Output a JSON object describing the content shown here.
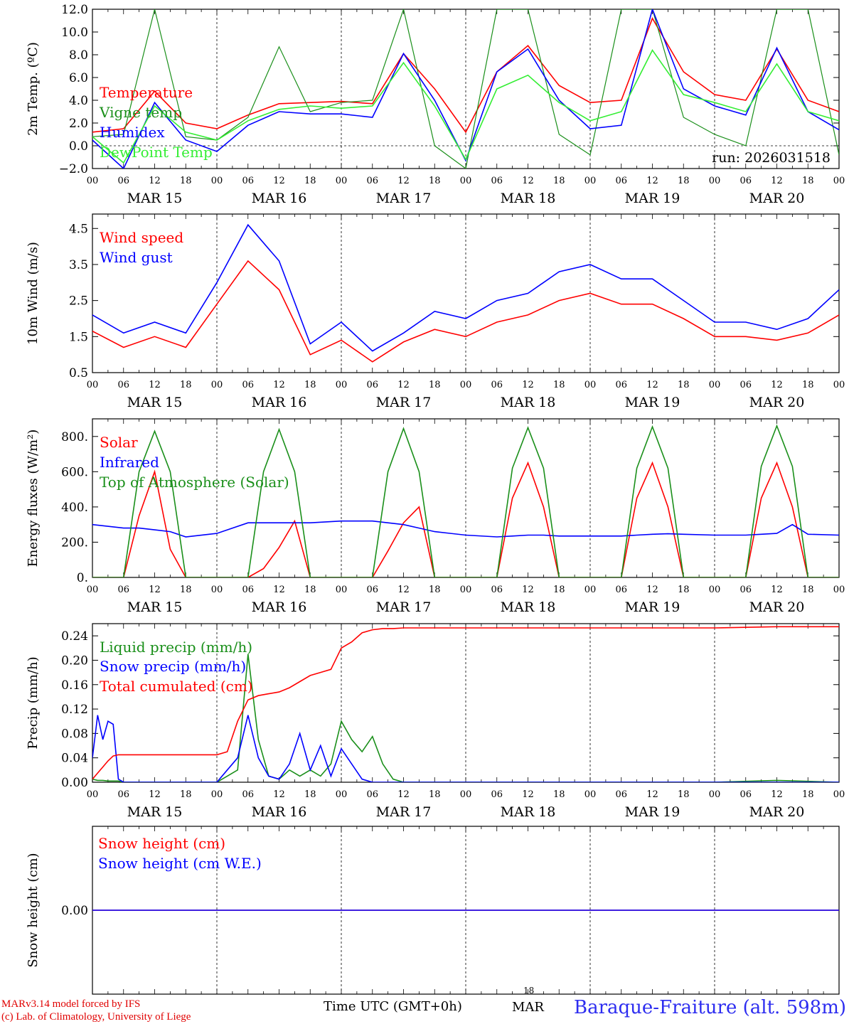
{
  "footer": {
    "model_line": "MARv3.14 model forced by IFS",
    "copyright_line": "(c) Lab. of Climatology, University of Liege",
    "time_label": "Time UTC (GMT+0h)",
    "center_day": "MAR",
    "center_hour": "18",
    "station": "Baraque-Fraiture (alt. 598m)"
  },
  "x_axis": {
    "hour_ticks": [
      "00",
      "06",
      "12",
      "18",
      "00",
      "06",
      "12",
      "18",
      "00",
      "06",
      "12",
      "18",
      "00",
      "06",
      "12",
      "18",
      "00",
      "06",
      "12",
      "18",
      "00",
      "06",
      "12",
      "18",
      "00"
    ],
    "day_labels": [
      "MAR 15",
      "MAR 16",
      "MAR 17",
      "MAR 18",
      "MAR 19",
      "MAR 20"
    ]
  },
  "colors": {
    "red": "#ff0000",
    "dark_green": "#1a8f1a",
    "blue": "#0000ff",
    "light_green": "#33ee33"
  },
  "chart_data": [
    {
      "type": "line",
      "ylabel": "2m Temp. (ºC)",
      "ylim": [
        -2,
        12
      ],
      "yticks": [
        "−2.0",
        "0.0",
        "2.0",
        "4.0",
        "6.0",
        "8.0",
        "10.0",
        "12.0"
      ],
      "annotation": "run: 2026031518",
      "x_hours": [
        0,
        6,
        12,
        18,
        24,
        30,
        36,
        42,
        48,
        54,
        60,
        66,
        72,
        78,
        84,
        90,
        96,
        102,
        108,
        114,
        120,
        126,
        132,
        138,
        144
      ],
      "series": [
        {
          "name": "Temperature",
          "color": "#ff0000",
          "values": [
            1.2,
            1.5,
            4.8,
            2.0,
            1.5,
            2.7,
            3.7,
            3.8,
            3.9,
            3.7,
            8.1,
            5.0,
            1.2,
            6.5,
            8.8,
            5.3,
            3.8,
            4.0,
            11.2,
            6.5,
            4.5,
            4.0,
            8.5,
            4.0,
            3.0
          ]
        },
        {
          "name": "Vigne temp",
          "color": "#1a8f1a",
          "values": [
            0.8,
            1.0,
            12.0,
            0.8,
            0.5,
            2.5,
            8.7,
            3.0,
            3.8,
            4.0,
            12.0,
            0.0,
            -2.0,
            12.0,
            12.0,
            1.0,
            -0.8,
            12.0,
            12.0,
            2.5,
            1.0,
            0.0,
            12.0,
            12.0,
            -0.8
          ]
        },
        {
          "name": "Humidex",
          "color": "#0000ff",
          "values": [
            0.5,
            -2.0,
            3.8,
            0.5,
            -0.5,
            1.8,
            3.0,
            2.8,
            2.8,
            2.5,
            8.1,
            4.0,
            -1.3,
            6.5,
            8.5,
            4.0,
            1.5,
            1.8,
            12.0,
            5.0,
            3.5,
            2.7,
            8.6,
            3.0,
            1.4
          ]
        },
        {
          "name": "DewPoint Temp",
          "color": "#33ee33",
          "values": [
            0.8,
            -1.5,
            3.5,
            1.2,
            0.5,
            2.2,
            3.2,
            3.5,
            3.3,
            3.5,
            7.3,
            3.5,
            -1.2,
            5.0,
            6.2,
            3.8,
            2.2,
            3.0,
            8.4,
            4.5,
            3.8,
            3.0,
            7.2,
            3.0,
            2.2
          ]
        }
      ]
    },
    {
      "type": "line",
      "ylabel": "10m Wind (m/s)",
      "ylim": [
        0.5,
        4.9
      ],
      "yticks": [
        "0.5",
        "1.5",
        "2.5",
        "3.5",
        "4.5"
      ],
      "x_hours": [
        0,
        6,
        12,
        18,
        24,
        30,
        36,
        42,
        48,
        54,
        60,
        66,
        72,
        78,
        84,
        90,
        96,
        102,
        108,
        114,
        120,
        126,
        132,
        138,
        144
      ],
      "series": [
        {
          "name": "Wind speed",
          "color": "#ff0000",
          "values": [
            1.65,
            1.2,
            1.5,
            1.2,
            2.4,
            3.6,
            2.8,
            1.0,
            1.4,
            0.8,
            1.35,
            1.7,
            1.5,
            1.9,
            2.1,
            2.5,
            2.7,
            2.4,
            2.4,
            2.0,
            1.5,
            1.5,
            1.4,
            1.6,
            2.1
          ]
        },
        {
          "name": "Wind gust",
          "color": "#0000ff",
          "values": [
            2.1,
            1.6,
            1.9,
            1.6,
            3.0,
            4.6,
            3.6,
            1.3,
            1.9,
            1.1,
            1.6,
            2.2,
            2.0,
            2.5,
            2.7,
            3.3,
            3.5,
            3.1,
            3.1,
            2.5,
            1.9,
            1.9,
            1.7,
            2.0,
            2.8
          ]
        }
      ]
    },
    {
      "type": "line",
      "ylabel": "Energy fluxes (W/m²)",
      "ylim": [
        0,
        900
      ],
      "yticks": [
        "0.",
        "200.",
        "400.",
        "600.",
        "800."
      ],
      "x_hours": [
        0,
        6,
        9,
        12,
        15,
        18,
        24,
        30,
        33,
        36,
        39,
        42,
        48,
        54,
        57,
        60,
        63,
        66,
        72,
        78,
        81,
        84,
        87,
        90,
        96,
        102,
        105,
        108,
        111,
        114,
        120,
        126,
        129,
        132,
        135,
        138,
        144
      ],
      "series": [
        {
          "name": "Solar",
          "color": "#ff0000",
          "values": [
            0,
            0,
            350,
            600,
            160,
            0,
            0,
            0,
            50,
            170,
            320,
            0,
            0,
            0,
            150,
            310,
            400,
            0,
            0,
            0,
            450,
            650,
            400,
            0,
            0,
            0,
            450,
            650,
            400,
            0,
            0,
            0,
            450,
            650,
            400,
            0,
            0
          ]
        },
        {
          "name": "Infrared",
          "color": "#0000ff",
          "values": [
            300,
            280,
            280,
            270,
            260,
            230,
            250,
            310,
            310,
            310,
            310,
            310,
            320,
            320,
            310,
            300,
            280,
            260,
            240,
            230,
            235,
            240,
            240,
            235,
            235,
            235,
            240,
            245,
            248,
            245,
            240,
            240,
            245,
            250,
            300,
            245,
            240
          ]
        },
        {
          "name": "Top of Atmosphere (Solar)",
          "color": "#1a8f1a",
          "values": [
            0,
            0,
            600,
            830,
            600,
            0,
            0,
            0,
            600,
            840,
            600,
            0,
            0,
            0,
            600,
            845,
            600,
            0,
            0,
            0,
            620,
            850,
            620,
            0,
            0,
            0,
            620,
            855,
            620,
            0,
            0,
            0,
            630,
            860,
            630,
            0,
            0
          ]
        }
      ]
    },
    {
      "type": "line",
      "ylabel": "Precip (mm/h)",
      "ylim": [
        0,
        0.26
      ],
      "yticks": [
        "0.00",
        "0.04",
        "0.08",
        "0.12",
        "0.16",
        "0.20",
        "0.24"
      ],
      "x_hours": [
        0,
        1,
        2,
        3,
        4,
        5,
        6,
        8,
        12,
        18,
        24,
        26,
        28,
        30,
        32,
        34,
        36,
        38,
        40,
        42,
        44,
        46,
        48,
        50,
        52,
        54,
        56,
        58,
        60,
        72,
        84,
        96,
        108,
        120,
        132,
        144
      ],
      "series": [
        {
          "name": "Liquid precip (mm/h)",
          "color": "#1a8f1a",
          "values": [
            0.005,
            0.003,
            0.003,
            0.002,
            0.002,
            0.002,
            0,
            0,
            0,
            0,
            0,
            0.01,
            0.02,
            0.21,
            0.07,
            0.01,
            0.005,
            0.02,
            0.01,
            0.02,
            0.01,
            0.03,
            0.1,
            0.07,
            0.05,
            0.075,
            0.03,
            0.005,
            0,
            0,
            0,
            0,
            0,
            0,
            0.003,
            0
          ]
        },
        {
          "name": "Snow precip (mm/h)",
          "color": "#0000ff",
          "values": [
            0.04,
            0.11,
            0.07,
            0.1,
            0.095,
            0.005,
            0,
            0,
            0,
            0,
            0,
            0.02,
            0.04,
            0.11,
            0.04,
            0.01,
            0.005,
            0.03,
            0.08,
            0.02,
            0.06,
            0.01,
            0.055,
            0.03,
            0.005,
            0,
            0,
            0,
            0,
            0,
            0,
            0,
            0,
            0,
            0,
            0
          ]
        },
        {
          "name": "Total cumulated (cm)",
          "color": "#ff0000",
          "values": [
            0.005,
            0.015,
            0.025,
            0.035,
            0.043,
            0.045,
            0.045,
            0.045,
            0.045,
            0.045,
            0.045,
            0.05,
            0.1,
            0.135,
            0.142,
            0.145,
            0.148,
            0.155,
            0.165,
            0.175,
            0.18,
            0.185,
            0.22,
            0.23,
            0.245,
            0.25,
            0.252,
            0.252,
            0.253,
            0.253,
            0.253,
            0.253,
            0.253,
            0.253,
            0.255,
            0.255
          ]
        }
      ]
    },
    {
      "type": "line",
      "ylabel": "Snow height (cm)",
      "ylim": [
        -1,
        1
      ],
      "yticks": [
        "0.00"
      ],
      "x_hours": [
        0,
        144
      ],
      "series": [
        {
          "name": "Snow height (cm)",
          "color": "#ff0000",
          "values": [
            0,
            0
          ]
        },
        {
          "name": "Snow height (cm W.E.)",
          "color": "#0000ff",
          "values": [
            0,
            0
          ]
        }
      ]
    }
  ]
}
